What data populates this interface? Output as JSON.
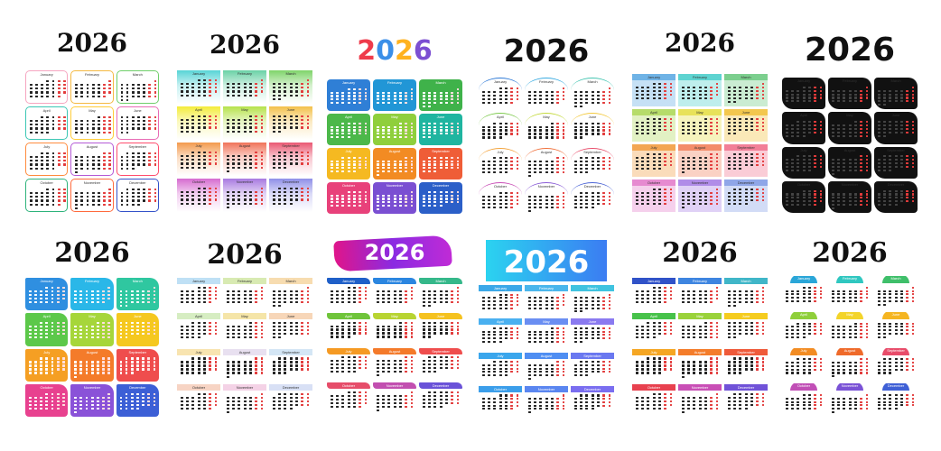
{
  "year": "2026",
  "months": [
    "January",
    "February",
    "March",
    "April",
    "May",
    "June",
    "July",
    "August",
    "September",
    "October",
    "November",
    "December"
  ],
  "calendars": [
    {
      "style": "outline-rainbow",
      "colors": [
        "#f6a5c0",
        "#f5b942",
        "#6fcf6a",
        "#3cc7b4",
        "#ffcc3a",
        "#e86bb5",
        "#ff8b3d",
        "#b45ad6",
        "#ff4d6d",
        "#2db37b",
        "#ff6a3d",
        "#3452c9"
      ]
    },
    {
      "style": "gradient-tiles",
      "colors": [
        "#58d4d6",
        "#6ad1a6",
        "#7fd46a",
        "#f3ec3a",
        "#b6e24b",
        "#f3c14a",
        "#f39a4d",
        "#f0735a",
        "#ea5873",
        "#d66bd0",
        "#a879e0",
        "#8f8fe8"
      ]
    },
    {
      "style": "solid-tiles",
      "colors": [
        "#2f7fd6",
        "#2196d6",
        "#3fb24a",
        "#4cb84a",
        "#8fcf3c",
        "#1fb5a0",
        "#f5b921",
        "#f28b23",
        "#ef5d37",
        "#e8417a",
        "#7a4fd2",
        "#2b5fc8"
      ],
      "title_colors": [
        "#ef3b4b",
        "#3b8fe8",
        "#ffb21f",
        "#7c4fd2"
      ]
    },
    {
      "style": "arc-lines",
      "colors": [
        "#2c79d6",
        "#35a9e0",
        "#41c4b0",
        "#7cc94b",
        "#c3d93a",
        "#f3c83a",
        "#f3a23a",
        "#f06f3a",
        "#e84c6a",
        "#c94fb6",
        "#8a5cd6",
        "#4d66d6"
      ]
    },
    {
      "style": "tab-tiles",
      "colors": [
        "#6fb3e6",
        "#5ed4d1",
        "#7ccf8e",
        "#b6dc6a",
        "#e8e25a",
        "#f3c74e",
        "#f3a653",
        "#f38c6a",
        "#f27f98",
        "#e68ad0",
        "#b08ce8",
        "#8fa6e8"
      ]
    },
    {
      "style": "black-brush",
      "colors": [
        "#111111",
        "#111111",
        "#111111",
        "#111111",
        "#111111",
        "#111111",
        "#111111",
        "#111111",
        "#111111",
        "#111111",
        "#111111",
        "#111111"
      ]
    },
    {
      "style": "folder-tiles",
      "colors": [
        "#2f8fe0",
        "#2ab7e8",
        "#2fc7a0",
        "#5cc84a",
        "#a6d63a",
        "#f5c81f",
        "#f59f23",
        "#f47b2a",
        "#ef4d4d",
        "#e8418f",
        "#8a52d8",
        "#3c5fd6"
      ]
    },
    {
      "style": "pastel-bars",
      "colors": [
        "#bfe0f5",
        "#d8eab2",
        "#f7dcb0",
        "#d6edc2",
        "#f5e5a8",
        "#f7d6b8",
        "#f8e4b0",
        "#e8e0f0",
        "#d4e6f5",
        "#f7d4c4",
        "#f4d2e6",
        "#d8e0f5"
      ]
    },
    {
      "style": "brush-bars",
      "colors": [
        "#1f5fc8",
        "#2b86e0",
        "#35b88a",
        "#6fc43a",
        "#b8d432",
        "#f5c21f",
        "#f59a23",
        "#f47a2a",
        "#ef4d4d",
        "#e64d6a",
        "#c24fb0",
        "#6a52d8"
      ],
      "banner_colors": [
        "#e0158a",
        "#8a2be2",
        "#c02bd6"
      ]
    },
    {
      "style": "gradient-bars",
      "colors": [
        "#3ba8e8",
        "#4ab6ec",
        "#3fc3e0",
        "#49b0f0",
        "#6a8ef2",
        "#8a7af0",
        "#3aa6ec",
        "#4f8ef2",
        "#6a78f0",
        "#3b9eea",
        "#5a86f0",
        "#7a6ef0"
      ],
      "banner_colors": [
        "#2bd3f0",
        "#3b7cf2"
      ]
    },
    {
      "style": "color-bars",
      "colors": [
        "#3052c8",
        "#3e85e0",
        "#40b6c8",
        "#47c24a",
        "#9ad23a",
        "#f5cc1f",
        "#f5a623",
        "#f47c2a",
        "#ef5a3a",
        "#e8414f",
        "#c94fb6",
        "#7052d8"
      ]
    },
    {
      "style": "arc-tabs",
      "colors": [
        "#2aa6d8",
        "#2fc7c0",
        "#3fbf6a",
        "#8fcf3a",
        "#f3d42a",
        "#f5b521",
        "#f28c23",
        "#ef6a2a",
        "#e84c6a",
        "#c14fb6",
        "#7a52d6",
        "#3f60d6"
      ]
    }
  ]
}
